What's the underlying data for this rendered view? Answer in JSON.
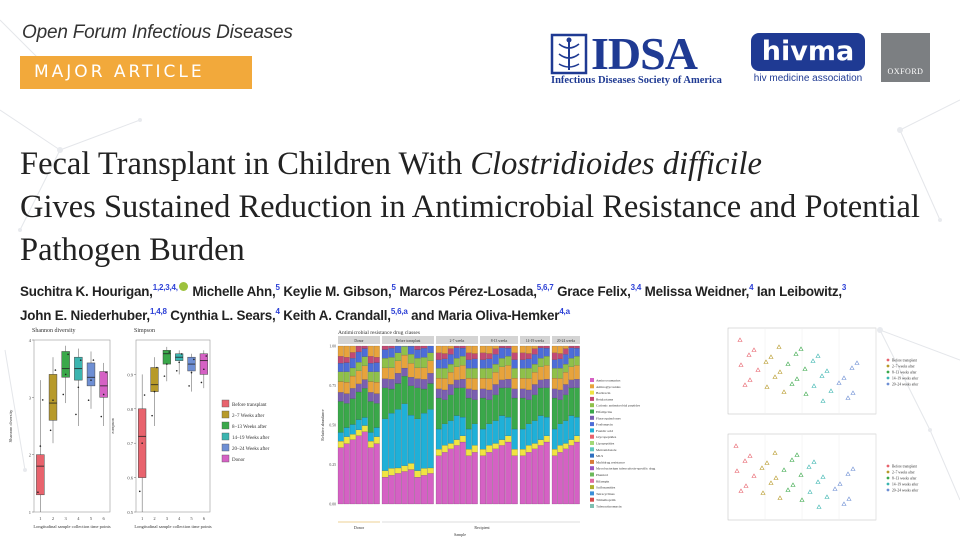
{
  "journal_name": "Open Forum Infectious Diseases",
  "article_type": "MAJOR ARTICLE",
  "logos": {
    "idsa": {
      "name": "IDSA",
      "subtitle": "Infectious Diseases Society of America"
    },
    "hivma": {
      "name": "hivma",
      "subtitle": "hiv medicine association"
    },
    "oxford": {
      "name": "OXFORD"
    }
  },
  "title": {
    "part1": "Fecal Transplant in Children With ",
    "italic": "Clostridioides difficile",
    "part2": "Gives Sustained Reduction in Antimicrobial Resistance and Potential Pathogen Burden"
  },
  "authors": [
    {
      "name": "Suchitra K. Hourigan,",
      "sup": "1,2,3,4,",
      "orcid": true
    },
    {
      "name": "Michelle Ahn,",
      "sup": "5"
    },
    {
      "name": "Keylie M. Gibson,",
      "sup": "5"
    },
    {
      "name": "Marcos Pérez-Losada,",
      "sup": "5,6,7"
    },
    {
      "name": "Grace Felix,",
      "sup": "3,4"
    },
    {
      "name": "Melissa Weidner,",
      "sup": "4"
    },
    {
      "name": "Ian Leibowitz,",
      "sup": "3"
    },
    {
      "name": "John E. Niederhuber,",
      "sup": "1,4,8"
    },
    {
      "name": "Cynthia L. Sears,",
      "sup": "4"
    },
    {
      "name": "Keith A. Crandall,",
      "sup": "5,6,a"
    },
    {
      "name": "and Maria Oliva-Hemker",
      "sup": "4,a"
    }
  ],
  "colors": {
    "badge": "#f2a93b",
    "brand_blue": "#1f3a93",
    "before": "#e8636d",
    "w2_7": "#b79a2a",
    "w8_13": "#3aa84a",
    "w14_19": "#3bb5b0",
    "w20_24": "#6e8fd4",
    "donor": "#d561c4"
  },
  "chart_data": [
    {
      "type": "box",
      "title": "Shannon diversity",
      "ylabel": "Shannon diversity",
      "xlabel": "Longitudinal sample collection time points",
      "categories": [
        "1",
        "2",
        "3",
        "4",
        "5",
        "6"
      ],
      "ylim": [
        1.0,
        4.0
      ],
      "yticks": [
        1,
        2,
        3,
        4
      ],
      "boxes": [
        {
          "q1": 1.3,
          "median": 1.8,
          "q3": 2.0,
          "min": 1.0,
          "max": 3.3
        },
        {
          "q1": 2.6,
          "median": 2.9,
          "q3": 3.4,
          "min": 2.2,
          "max": 3.7
        },
        {
          "q1": 3.35,
          "median": 3.5,
          "q3": 3.8,
          "min": 2.9,
          "max": 3.9
        },
        {
          "q1": 3.3,
          "median": 3.5,
          "q3": 3.7,
          "min": 2.5,
          "max": 3.85
        },
        {
          "q1": 3.2,
          "median": 3.35,
          "q3": 3.6,
          "min": 2.8,
          "max": 3.8
        },
        {
          "q1": 3.0,
          "median": 3.2,
          "q3": 3.45,
          "min": 2.5,
          "max": 3.6
        }
      ]
    },
    {
      "type": "box",
      "title": "Simpson",
      "ylabel": "Simpson",
      "xlabel": "Longitudinal sample collection time points",
      "categories": [
        "1",
        "2",
        "3",
        "4",
        "5",
        "6"
      ],
      "ylim": [
        0.5,
        1.0
      ],
      "yticks": [
        0.5,
        0.6,
        0.7,
        0.8,
        0.9
      ],
      "boxes": [
        {
          "q1": 0.6,
          "median": 0.72,
          "q3": 0.8,
          "min": 0.5,
          "max": 0.9
        },
        {
          "q1": 0.85,
          "median": 0.87,
          "q3": 0.92,
          "min": 0.75,
          "max": 0.95
        },
        {
          "q1": 0.93,
          "median": 0.96,
          "q3": 0.97,
          "min": 0.88,
          "max": 0.98
        },
        {
          "q1": 0.94,
          "median": 0.95,
          "q3": 0.96,
          "min": 0.9,
          "max": 0.97
        },
        {
          "q1": 0.91,
          "median": 0.93,
          "q3": 0.95,
          "min": 0.85,
          "max": 0.96
        },
        {
          "q1": 0.9,
          "median": 0.94,
          "q3": 0.96,
          "min": 0.86,
          "max": 0.97
        }
      ],
      "legend": [
        "Before transplant",
        "2–7 Weeks after",
        "8–13 Weeks after",
        "14–19 Weeks after",
        "20–24 Weeks after",
        "Donor"
      ]
    },
    {
      "type": "stacked-bar",
      "title": "Antimicrobial resistance drug classes",
      "ylabel": "Relative abundance",
      "xlabel": "Sample",
      "ylim": [
        0,
        1
      ],
      "yticks": [
        "0.00",
        "0.25",
        "0.50",
        "0.75",
        "1.00"
      ],
      "facets": [
        "Donor",
        "Before transplant",
        "2-7 weeks",
        "8-13 weeks",
        "14-19 weeks",
        "20-24 weeks"
      ],
      "group_labels": [
        "Donor",
        "Recipient"
      ],
      "legend": [
        "Aminocoumarins",
        "Aminoglycosides",
        "Bacitracin",
        "Betalactams",
        "Cationic antimicrobial peptides",
        "Elfamycins",
        "Fluoroquinolones",
        "Fosfomycin",
        "Fusidic acid",
        "Glycopeptides",
        "Lipopeptides",
        "Metronidazole",
        "MLS",
        "Multidrug resistance",
        "Mycobacterium tuberculosis-specific drug",
        "Phenicol",
        "Rifampin",
        "Sulfonamides",
        "Tetracyclines",
        "Trimethoprim",
        "Tuberactinomycin"
      ]
    },
    {
      "type": "scatter",
      "panels": 2,
      "legend": [
        "Before transplant",
        "2–7 weeks after",
        "8–13 weeks after",
        "14–19 weeks after",
        "20–24 weeks after"
      ]
    }
  ]
}
